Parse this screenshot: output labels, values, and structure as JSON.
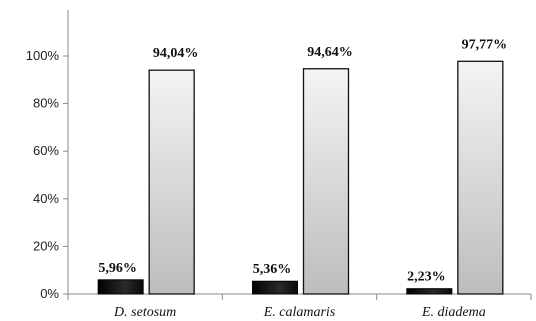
{
  "chart_data": {
    "type": "bar",
    "categories": [
      "D. setosum",
      "E. calamaris",
      "E. diadema"
    ],
    "series": [
      {
        "values": [
          5.96,
          5.36,
          2.23
        ],
        "labels": [
          "5,96%",
          "5,36%",
          "2,23%"
        ],
        "color": "#1a1a1a"
      },
      {
        "values": [
          94.04,
          94.64,
          97.77
        ],
        "labels": [
          "94,04%",
          "94,64%",
          "97,77%"
        ],
        "color": "#d9d9d9"
      }
    ],
    "y_ticks": [
      "0%",
      "20%",
      "40%",
      "60%",
      "80%",
      "100%"
    ],
    "ylim": [
      0,
      100
    ],
    "grid": false,
    "legend": "none",
    "title": "",
    "xlabel": "",
    "ylabel": ""
  }
}
